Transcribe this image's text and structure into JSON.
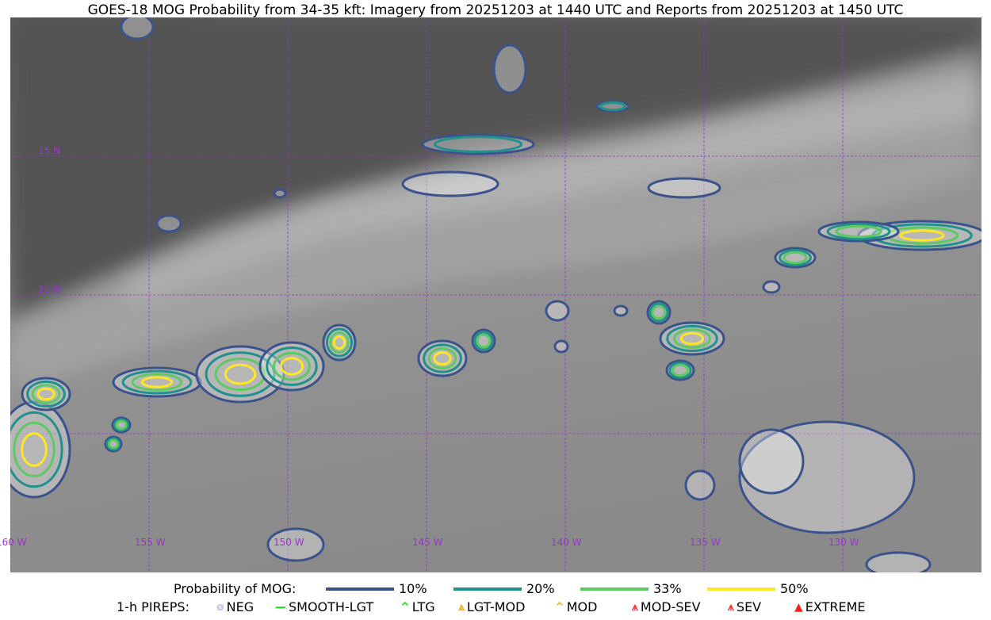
{
  "title": "GOES-18 MOG Probability from 34-35 kft: Imagery from 20251203 at 1440 UTC and Reports from 20251203 at 1450 UTC",
  "map": {
    "grid_color": "#9933cc",
    "lat_labels": [
      "15 N",
      "10 N"
    ],
    "lon_labels": [
      "160 W",
      "155 W",
      "150 W",
      "145 W",
      "140 W",
      "135 W",
      "130 W"
    ]
  },
  "legend": {
    "probability_title": "Probability of MOG:",
    "probability_levels": [
      {
        "label": "10%",
        "color": "#3b528b"
      },
      {
        "label": "20%",
        "color": "#21918c"
      },
      {
        "label": "33%",
        "color": "#5ec962"
      },
      {
        "label": "50%",
        "color": "#fde725"
      }
    ],
    "pireps_title": "1-h PIREPS:",
    "pireps": [
      {
        "label": "NEG",
        "color": "#c8c8f0",
        "icon": "neg-icon"
      },
      {
        "label": "SMOOTH-LGT",
        "color": "#00ee00",
        "icon": "smooth-lgt-icon"
      },
      {
        "label": "LTG",
        "color": "#00ee00",
        "icon": "ltg-icon"
      },
      {
        "label": "LGT-MOD",
        "color": "#f5b020",
        "icon": "lgt-mod-icon"
      },
      {
        "label": "MOD",
        "color": "#f5b020",
        "icon": "mod-icon"
      },
      {
        "label": "MOD-SEV",
        "color": "#ff3030",
        "icon": "mod-sev-icon"
      },
      {
        "label": "SEV",
        "color": "#ff3030",
        "icon": "sev-icon"
      },
      {
        "label": "EXTREME",
        "color": "#ff2020",
        "icon": "extreme-icon"
      }
    ]
  }
}
